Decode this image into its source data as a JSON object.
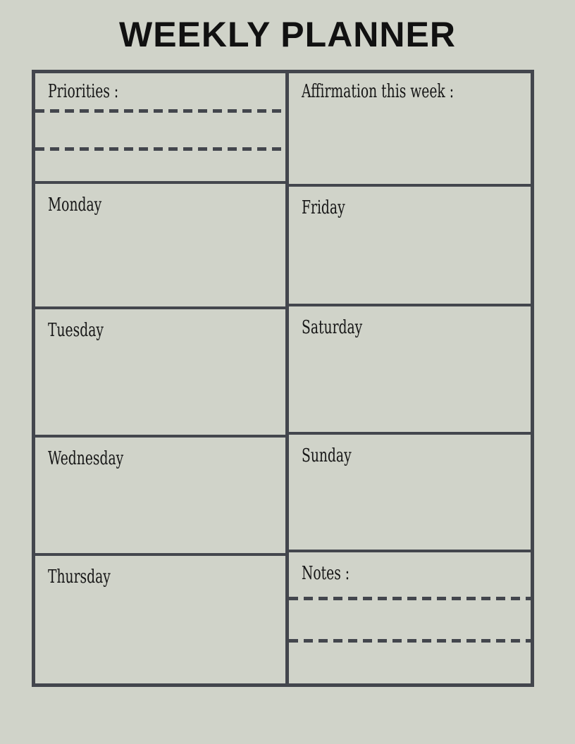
{
  "page": {
    "title": "WEEKLY PLANNER"
  },
  "colors": {
    "background": "#d0d3c9",
    "grid_border": "#43464d",
    "text": "#161616"
  },
  "planner": {
    "left_column": [
      {
        "label": "Priorities :",
        "writing_lines": 2
      },
      {
        "label": "Monday"
      },
      {
        "label": "Tuesday"
      },
      {
        "label": "Wednesday"
      },
      {
        "label": "Thursday"
      }
    ],
    "right_column": [
      {
        "label": "Affirmation this week :"
      },
      {
        "label": "Friday"
      },
      {
        "label": "Saturday"
      },
      {
        "label": "Sunday"
      },
      {
        "label": "Notes :",
        "writing_lines": 2
      }
    ]
  }
}
